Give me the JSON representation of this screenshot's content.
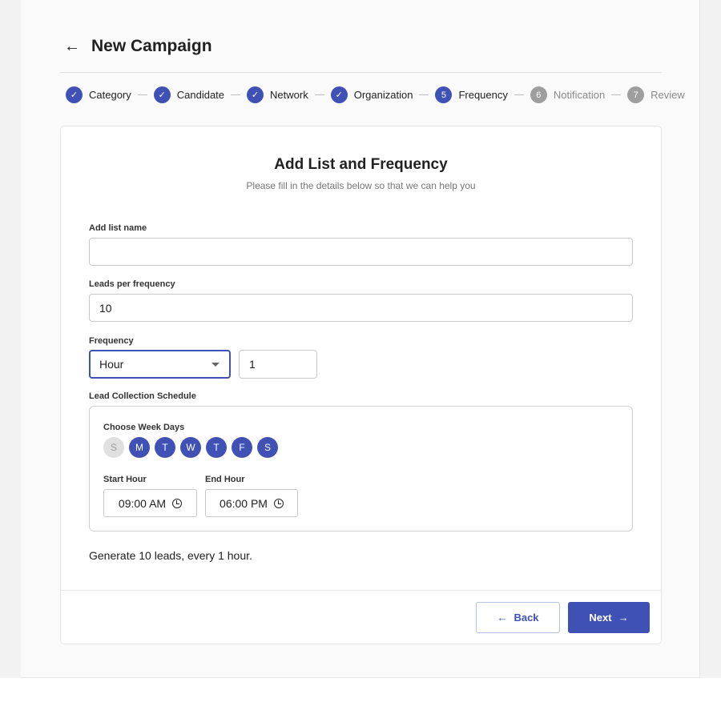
{
  "header": {
    "title": "New Campaign",
    "back_icon": "arrow-left-icon"
  },
  "stepper": [
    {
      "label": "Category",
      "state": "done"
    },
    {
      "label": "Candidate",
      "state": "done"
    },
    {
      "label": "Network",
      "state": "done"
    },
    {
      "label": "Organization",
      "state": "done"
    },
    {
      "label": "Frequency",
      "state": "active",
      "number": "5"
    },
    {
      "label": "Notification",
      "state": "todo",
      "number": "6"
    },
    {
      "label": "Review",
      "state": "todo",
      "number": "7"
    }
  ],
  "form": {
    "title": "Add List and Frequency",
    "subtitle": "Please fill in the details below so that we can help you",
    "list_name_label": "Add list name",
    "list_name_value": "",
    "leads_label": "Leads per frequency",
    "leads_value": "10",
    "frequency_label": "Frequency",
    "frequency_unit": "Hour",
    "frequency_value": "1",
    "schedule_label": "Lead Collection Schedule",
    "weekdays_label": "Choose Week Days",
    "weekdays": [
      {
        "d": "S",
        "on": false
      },
      {
        "d": "M",
        "on": true
      },
      {
        "d": "T",
        "on": true
      },
      {
        "d": "W",
        "on": true
      },
      {
        "d": "T",
        "on": true
      },
      {
        "d": "F",
        "on": true
      },
      {
        "d": "S",
        "on": true
      }
    ],
    "start_label": "Start Hour",
    "start_value": "09:00 AM",
    "end_label": "End Hour",
    "end_value": "06:00 PM",
    "summary": "Generate 10 leads, every 1 hour."
  },
  "actions": {
    "back": "Back",
    "next": "Next"
  },
  "colors": {
    "primary": "#3f51b5",
    "inactive": "#9e9e9e"
  }
}
